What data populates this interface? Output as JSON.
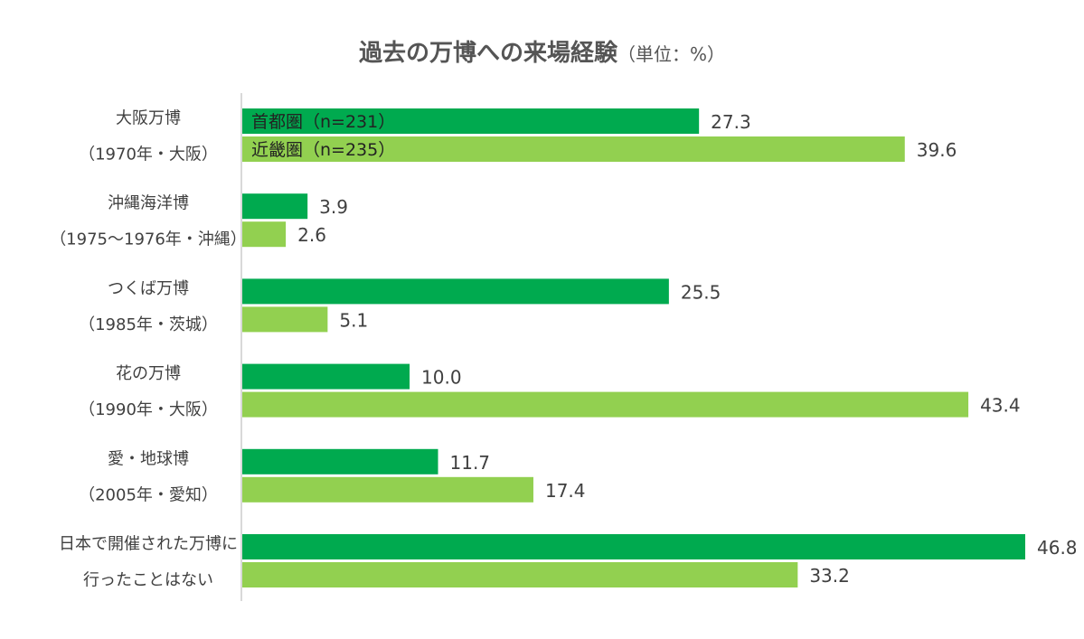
{
  "title": {
    "main": "過去の万博への来場経験",
    "unit": "（単位：%）"
  },
  "colors": {
    "series1": "#00AA4F",
    "series2": "#92D050",
    "axis": "#D9D9D9"
  },
  "chart_data": {
    "type": "bar",
    "orientation": "horizontal",
    "title": "過去の万博への来場経験（単位：%）",
    "categories": [
      [
        "大阪万博",
        "（1970年・大阪）"
      ],
      [
        "沖縄海洋博",
        "（1975～1976年・沖縄）"
      ],
      [
        "つくば万博",
        "（1985年・茨城）"
      ],
      [
        "花の万博",
        "（1990年・大阪）"
      ],
      [
        "愛・地球博",
        "（2005年・愛知）"
      ],
      [
        "日本で開催された万博に",
        "行ったことはない"
      ]
    ],
    "series": [
      {
        "name": "首都圏（n=231）",
        "values": [
          27.3,
          3.9,
          25.5,
          10.0,
          11.7,
          46.8
        ],
        "labels": [
          "27.3",
          "3.9",
          "25.5",
          "10.0",
          "11.7",
          "46.8"
        ]
      },
      {
        "name": "近畿圏（n=235）",
        "values": [
          39.6,
          2.6,
          5.1,
          43.4,
          17.4,
          33.2
        ],
        "labels": [
          "39.6",
          "2.6",
          "5.1",
          "43.4",
          "17.4",
          "33.2"
        ]
      }
    ],
    "xlim": [
      0,
      46.8
    ],
    "grid": false,
    "legend": "inside-bars"
  }
}
